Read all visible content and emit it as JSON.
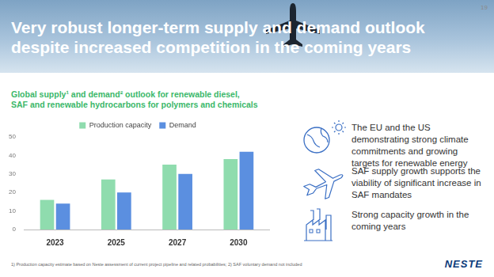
{
  "slide": {
    "page_number": "19",
    "title": [
      "Very robust longer-term supply and demand outlook",
      "despite increased competition in the coming years"
    ],
    "points": [
      "The EU and the US demonstrating strong climate commitments and growing targets for renewable energy",
      "SAF supply growth supports the viability of significant increase in SAF mandates",
      "Strong capacity growth in the coming years"
    ],
    "footnote": "1) Production capacity estimate based on Neste assessment of current project pipeline and related probabilities; 2) SAF voluntary demand not included",
    "logo": "NESTE"
  },
  "chart_data": {
    "type": "bar",
    "title": [
      "Global supply¹ and demand² outlook for renewable diesel,",
      "SAF and renewable hydrocarbons for polymers and chemicals"
    ],
    "categories": [
      "2023",
      "2025",
      "2027",
      "2030"
    ],
    "series": [
      {
        "name": "Production capacity",
        "color": "#8fdcae",
        "values": [
          16,
          27,
          35,
          38
        ]
      },
      {
        "name": "Demand",
        "color": "#5b8fe0",
        "values": [
          14,
          20,
          30,
          42
        ]
      }
    ],
    "ylim": [
      0,
      50
    ],
    "yticks": [
      0,
      10,
      20,
      30,
      40,
      50
    ],
    "grid": false,
    "legend": "top"
  }
}
